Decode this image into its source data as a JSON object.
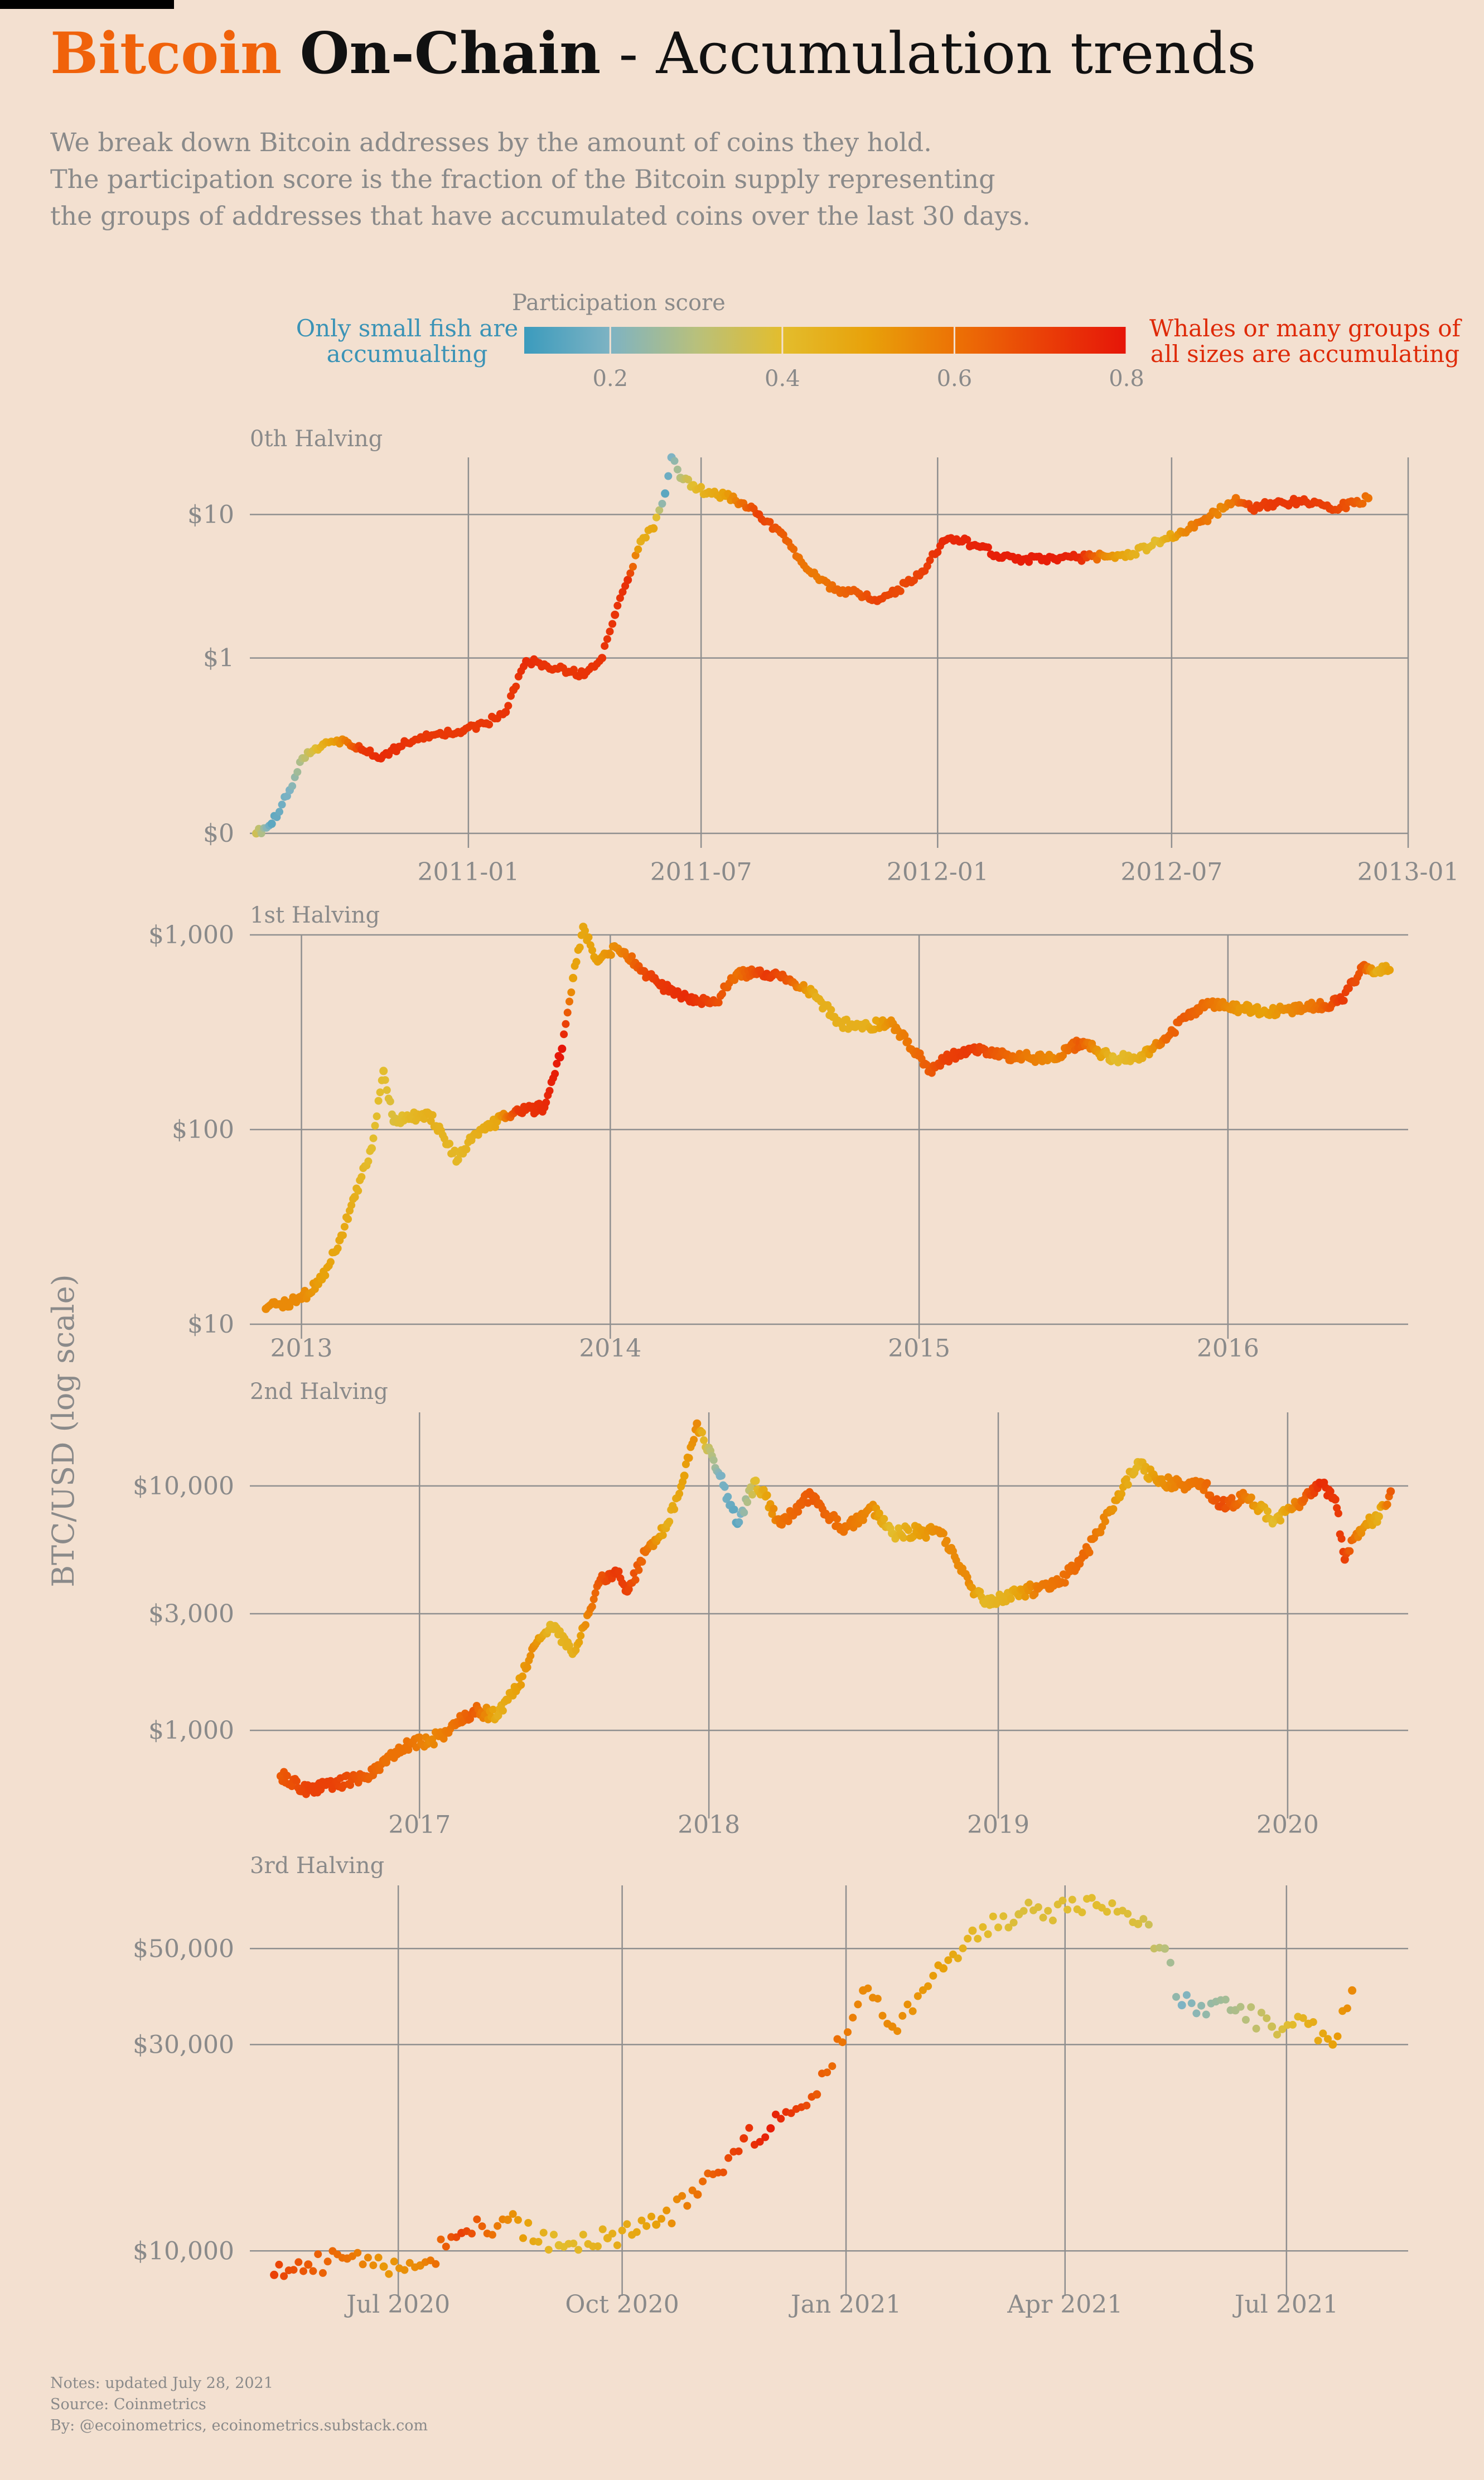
{
  "title": {
    "part1": "Bitcoin",
    "part2": "On-Chain",
    "part3": " - Accumulation trends"
  },
  "subtitle": [
    "We break down Bitcoin addresses by the amount of coins they hold.",
    "The participation score is the fraction of the Bitcoin supply representing",
    "the groups of addresses that have accumulated coins over the last 30 days."
  ],
  "legend": {
    "title": "Participation score",
    "left_label": "Only small fish are accumualting",
    "right_label": "Whales or many groups of all sizes are accumulating",
    "ticks": [
      "0.2",
      "0.4",
      "0.6",
      "0.8"
    ],
    "tick_values": [
      0.2,
      0.4,
      0.6,
      0.8
    ],
    "range": [
      0.1,
      0.8
    ],
    "colors": [
      "#3b9bbd",
      "#7eb3c3",
      "#b8c07c",
      "#e3bd2d",
      "#e8a10a",
      "#ec7205",
      "#ea4107",
      "#e61508"
    ],
    "left_color": "#3b93b6",
    "right_color": "#de2a08"
  },
  "ylabel": "BTC/USD (log scale)",
  "notes": [
    "Notes: updated July 28, 2021",
    "Source: Coinmetrics",
    "By: @ecoinometrics, ecoinometrics.substack.com"
  ],
  "chart_data": [
    {
      "type": "scatter",
      "title": "0th Halving",
      "yscale": "log",
      "xlim": [
        "2010-07-15",
        "2013-01-01"
      ],
      "ylim": [
        0.06,
        25
      ],
      "xticks": [
        {
          "date": "2011-01-01",
          "label": "2011-01"
        },
        {
          "date": "2011-07-01",
          "label": "2011-07"
        },
        {
          "date": "2012-01-01",
          "label": "2012-01"
        },
        {
          "date": "2012-07-01",
          "label": "2012-07"
        },
        {
          "date": "2013-01-01",
          "label": "2013-01"
        }
      ],
      "yticks": [
        {
          "value": 0.06,
          "label": "$0"
        },
        {
          "value": 1,
          "label": "$1"
        },
        {
          "value": 10,
          "label": "$10"
        }
      ],
      "points": [
        [
          "2010-07-20",
          0.06,
          0.35
        ],
        [
          "2010-08-01",
          0.07,
          0.15
        ],
        [
          "2010-08-15",
          0.12,
          0.2
        ],
        [
          "2010-08-25",
          0.2,
          0.3
        ],
        [
          "2010-09-10",
          0.25,
          0.45
        ],
        [
          "2010-09-25",
          0.27,
          0.55
        ],
        [
          "2010-10-10",
          0.23,
          0.72
        ],
        [
          "2010-10-25",
          0.2,
          0.75
        ],
        [
          "2010-11-08",
          0.24,
          0.74
        ],
        [
          "2010-11-25",
          0.28,
          0.72
        ],
        [
          "2010-12-10",
          0.3,
          0.72
        ],
        [
          "2010-12-28",
          0.31,
          0.72
        ],
        [
          "2011-01-15",
          0.35,
          0.72
        ],
        [
          "2011-01-30",
          0.42,
          0.73
        ],
        [
          "2011-02-05",
          0.6,
          0.72
        ],
        [
          "2011-02-15",
          0.95,
          0.75
        ],
        [
          "2011-03-01",
          0.9,
          0.73
        ],
        [
          "2011-03-20",
          0.8,
          0.72
        ],
        [
          "2011-04-01",
          0.76,
          0.73
        ],
        [
          "2011-04-15",
          1.0,
          0.73
        ],
        [
          "2011-04-25",
          2.0,
          0.73
        ],
        [
          "2011-05-05",
          3.5,
          0.74
        ],
        [
          "2011-05-15",
          6.5,
          0.45
        ],
        [
          "2011-05-25",
          8.0,
          0.48
        ],
        [
          "2011-06-03",
          14.0,
          0.15
        ],
        [
          "2011-06-08",
          25.0,
          0.2
        ],
        [
          "2011-06-15",
          18.0,
          0.3
        ],
        [
          "2011-06-25",
          16.0,
          0.4
        ],
        [
          "2011-07-05",
          14.0,
          0.45
        ],
        [
          "2011-07-20",
          13.5,
          0.5
        ],
        [
          "2011-08-01",
          12.0,
          0.6
        ],
        [
          "2011-08-15",
          10.0,
          0.7
        ],
        [
          "2011-09-01",
          7.5,
          0.65
        ],
        [
          "2011-09-15",
          5.0,
          0.6
        ],
        [
          "2011-10-01",
          3.5,
          0.58
        ],
        [
          "2011-10-15",
          3.0,
          0.62
        ],
        [
          "2011-11-01",
          2.8,
          0.65
        ],
        [
          "2011-11-15",
          2.5,
          0.7
        ],
        [
          "2011-12-01",
          3.0,
          0.68
        ],
        [
          "2011-12-20",
          4.0,
          0.7
        ],
        [
          "2012-01-05",
          6.5,
          0.75
        ],
        [
          "2012-01-20",
          6.5,
          0.76
        ],
        [
          "2012-02-05",
          6.0,
          0.77
        ],
        [
          "2012-02-20",
          5.0,
          0.78
        ],
        [
          "2012-03-10",
          4.9,
          0.78
        ],
        [
          "2012-04-01",
          4.9,
          0.78
        ],
        [
          "2012-04-20",
          5.0,
          0.76
        ],
        [
          "2012-05-10",
          5.1,
          0.55
        ],
        [
          "2012-06-01",
          5.3,
          0.45
        ],
        [
          "2012-06-20",
          6.5,
          0.4
        ],
        [
          "2012-07-10",
          7.5,
          0.55
        ],
        [
          "2012-07-25",
          9.0,
          0.6
        ],
        [
          "2012-08-10",
          11.0,
          0.55
        ],
        [
          "2012-08-20",
          13.0,
          0.6
        ],
        [
          "2012-09-01",
          11.0,
          0.7
        ],
        [
          "2012-09-20",
          12.0,
          0.72
        ],
        [
          "2012-10-10",
          12.3,
          0.72
        ],
        [
          "2012-11-01",
          11.0,
          0.7
        ],
        [
          "2012-11-20",
          12.0,
          0.65
        ],
        [
          "2012-12-01",
          13.0,
          0.6
        ]
      ]
    },
    {
      "type": "scatter",
      "title": "1st Halving",
      "yscale": "log",
      "xlim": [
        "2012-11-01",
        "2016-08-01"
      ],
      "ylim": [
        10,
        1000
      ],
      "xticks": [
        {
          "date": "2013-01-01",
          "label": "2013"
        },
        {
          "date": "2014-01-01",
          "label": "2014"
        },
        {
          "date": "2015-01-01",
          "label": "2015"
        },
        {
          "date": "2016-01-01",
          "label": "2016"
        }
      ],
      "yticks": [
        {
          "value": 10,
          "label": "$10"
        },
        {
          "value": 100,
          "label": "$100"
        },
        {
          "value": 1000,
          "label": "$1,000"
        }
      ],
      "points": [
        [
          "2012-11-20",
          12.0,
          0.55
        ],
        [
          "2013-01-01",
          13.5,
          0.55
        ],
        [
          "2013-01-25",
          17.0,
          0.5
        ],
        [
          "2013-02-15",
          27.0,
          0.48
        ],
        [
          "2013-03-05",
          45.0,
          0.45
        ],
        [
          "2013-03-25",
          80.0,
          0.4
        ],
        [
          "2013-04-08",
          200.0,
          0.4
        ],
        [
          "2013-04-20",
          110.0,
          0.38
        ],
        [
          "2013-05-10",
          115.0,
          0.42
        ],
        [
          "2013-06-01",
          120.0,
          0.45
        ],
        [
          "2013-07-05",
          70.0,
          0.42
        ],
        [
          "2013-07-25",
          95.0,
          0.45
        ],
        [
          "2013-08-20",
          110.0,
          0.48
        ],
        [
          "2013-09-15",
          125.0,
          0.72
        ],
        [
          "2013-10-15",
          130.0,
          0.75
        ],
        [
          "2013-11-05",
          260.0,
          0.8
        ],
        [
          "2013-11-18",
          600.0,
          0.5
        ],
        [
          "2013-11-30",
          1100.0,
          0.48
        ],
        [
          "2013-12-15",
          750.0,
          0.5
        ],
        [
          "2014-01-10",
          850.0,
          0.55
        ],
        [
          "2014-02-10",
          650.0,
          0.68
        ],
        [
          "2014-03-01",
          550.0,
          0.72
        ],
        [
          "2014-04-01",
          480.0,
          0.75
        ],
        [
          "2014-05-05",
          450.0,
          0.68
        ],
        [
          "2014-06-01",
          640.0,
          0.6
        ],
        [
          "2014-07-05",
          630.0,
          0.72
        ],
        [
          "2014-08-01",
          590.0,
          0.65
        ],
        [
          "2014-09-01",
          480.0,
          0.45
        ],
        [
          "2014-10-01",
          350.0,
          0.45
        ],
        [
          "2014-11-01",
          340.0,
          0.45
        ],
        [
          "2014-12-01",
          350.0,
          0.55
        ],
        [
          "2015-01-14",
          200.0,
          0.65
        ],
        [
          "2015-02-01",
          230.0,
          0.7
        ],
        [
          "2015-03-01",
          260.0,
          0.72
        ],
        [
          "2015-04-01",
          240.0,
          0.65
        ],
        [
          "2015-05-10",
          235.0,
          0.58
        ],
        [
          "2015-06-10",
          230.0,
          0.55
        ],
        [
          "2015-07-10",
          280.0,
          0.65
        ],
        [
          "2015-08-20",
          230.0,
          0.4
        ],
        [
          "2015-09-20",
          240.0,
          0.45
        ],
        [
          "2015-10-20",
          290.0,
          0.62
        ],
        [
          "2015-11-10",
          380.0,
          0.65
        ],
        [
          "2015-12-10",
          440.0,
          0.6
        ],
        [
          "2016-01-15",
          420.0,
          0.52
        ],
        [
          "2016-02-15",
          400.0,
          0.5
        ],
        [
          "2016-03-15",
          410.0,
          0.55
        ],
        [
          "2016-04-15",
          430.0,
          0.6
        ],
        [
          "2016-05-15",
          460.0,
          0.72
        ],
        [
          "2016-06-10",
          700.0,
          0.65
        ],
        [
          "2016-06-25",
          650.0,
          0.45
        ],
        [
          "2016-07-10",
          660.0,
          0.5
        ]
      ]
    },
    {
      "type": "scatter",
      "title": "2nd Halving",
      "yscale": "log",
      "xlim": [
        "2016-06-01",
        "2020-06-01"
      ],
      "ylim": [
        500,
        20000
      ],
      "xticks": [
        {
          "date": "2017-01-01",
          "label": "2017"
        },
        {
          "date": "2018-01-01",
          "label": "2018"
        },
        {
          "date": "2019-01-01",
          "label": "2019"
        },
        {
          "date": "2020-01-01",
          "label": "2020"
        }
      ],
      "yticks": [
        {
          "value": 1000,
          "label": "$1,000"
        },
        {
          "value": 3000,
          "label": "$3,000"
        },
        {
          "value": 10000,
          "label": "$10,000"
        }
      ],
      "points": [
        [
          "2016-07-10",
          650.0,
          0.65
        ],
        [
          "2016-08-15",
          570.0,
          0.7
        ],
        [
          "2016-09-15",
          600.0,
          0.7
        ],
        [
          "2016-10-20",
          640.0,
          0.65
        ],
        [
          "2016-11-20",
          740.0,
          0.6
        ],
        [
          "2016-12-20",
          880.0,
          0.6
        ],
        [
          "2017-01-15",
          900.0,
          0.55
        ],
        [
          "2017-02-15",
          1050.0,
          0.6
        ],
        [
          "2017-03-10",
          1200.0,
          0.65
        ],
        [
          "2017-04-10",
          1150.0,
          0.45
        ],
        [
          "2017-05-05",
          1500.0,
          0.5
        ],
        [
          "2017-05-25",
          2200.0,
          0.55
        ],
        [
          "2017-06-15",
          2700.0,
          0.42
        ],
        [
          "2017-07-15",
          2100.0,
          0.45
        ],
        [
          "2017-08-15",
          4000.0,
          0.65
        ],
        [
          "2017-09-05",
          4500.0,
          0.72
        ],
        [
          "2017-09-20",
          3700.0,
          0.7
        ],
        [
          "2017-10-15",
          5500.0,
          0.6
        ],
        [
          "2017-11-10",
          7000.0,
          0.45
        ],
        [
          "2017-12-01",
          11000.0,
          0.5
        ],
        [
          "2017-12-17",
          18000.0,
          0.55
        ],
        [
          "2017-12-30",
          14000.0,
          0.35
        ],
        [
          "2018-01-15",
          11000.0,
          0.2
        ],
        [
          "2018-02-06",
          7000.0,
          0.15
        ],
        [
          "2018-03-01",
          10500.0,
          0.4
        ],
        [
          "2018-04-01",
          7000.0,
          0.6
        ],
        [
          "2018-05-10",
          9200.0,
          0.65
        ],
        [
          "2018-06-20",
          6500.0,
          0.6
        ],
        [
          "2018-07-25",
          8200.0,
          0.55
        ],
        [
          "2018-08-20",
          6400.0,
          0.4
        ],
        [
          "2018-09-20",
          6500.0,
          0.5
        ],
        [
          "2018-10-20",
          6400.0,
          0.55
        ],
        [
          "2018-11-25",
          4000.0,
          0.55
        ],
        [
          "2018-12-15",
          3300.0,
          0.42
        ],
        [
          "2019-01-15",
          3600.0,
          0.45
        ],
        [
          "2019-02-20",
          3800.0,
          0.58
        ],
        [
          "2019-03-20",
          4000.0,
          0.6
        ],
        [
          "2019-04-20",
          5200.0,
          0.62
        ],
        [
          "2019-05-20",
          7800.0,
          0.55
        ],
        [
          "2019-06-26",
          12500.0,
          0.42
        ],
        [
          "2019-07-20",
          10500.0,
          0.52
        ],
        [
          "2019-08-20",
          10100.0,
          0.58
        ],
        [
          "2019-09-15",
          10300.0,
          0.6
        ],
        [
          "2019-10-10",
          8300.0,
          0.68
        ],
        [
          "2019-11-10",
          9000.0,
          0.58
        ],
        [
          "2019-12-15",
          7200.0,
          0.4
        ],
        [
          "2020-01-20",
          8600.0,
          0.62
        ],
        [
          "2020-02-12",
          10200.0,
          0.75
        ],
        [
          "2020-03-01",
          8800.0,
          0.72
        ],
        [
          "2020-03-13",
          5000.0,
          0.7
        ],
        [
          "2020-04-01",
          6600.0,
          0.55
        ],
        [
          "2020-04-25",
          7500.0,
          0.45
        ],
        [
          "2020-05-10",
          9500.0,
          0.65
        ]
      ]
    },
    {
      "type": "scatter",
      "title": "3rd Halving",
      "yscale": "log",
      "xlim": [
        "2020-05-01",
        "2021-08-20"
      ],
      "ylim": [
        8500,
        70000
      ],
      "xticks": [
        {
          "date": "2020-07-01",
          "label": "Jul 2020"
        },
        {
          "date": "2020-10-01",
          "label": "Oct 2020"
        },
        {
          "date": "2021-01-01",
          "label": "Jan 2021"
        },
        {
          "date": "2021-04-01",
          "label": "Apr 2021"
        },
        {
          "date": "2021-07-01",
          "label": "Jul 2021"
        }
      ],
      "yticks": [
        {
          "value": 10000,
          "label": "$10,000"
        },
        {
          "value": 30000,
          "label": "$30,000"
        },
        {
          "value": 50000,
          "label": "$50,000"
        }
      ],
      "points": [
        [
          "2020-05-11",
          8800.0,
          0.7
        ],
        [
          "2020-05-25",
          9300.0,
          0.65
        ],
        [
          "2020-06-10",
          9600.0,
          0.6
        ],
        [
          "2020-06-25",
          9200.0,
          0.52
        ],
        [
          "2020-07-10",
          9250.0,
          0.55
        ],
        [
          "2020-07-27",
          11000.0,
          0.7
        ],
        [
          "2020-08-15",
          11800.0,
          0.55
        ],
        [
          "2020-09-05",
          10300.0,
          0.4
        ],
        [
          "2020-09-25",
          10700.0,
          0.45
        ],
        [
          "2020-10-15",
          11500.0,
          0.5
        ],
        [
          "2020-11-01",
          13500.0,
          0.6
        ],
        [
          "2020-11-20",
          18200.0,
          0.72
        ],
        [
          "2020-12-01",
          19200.0,
          0.78
        ],
        [
          "2020-12-20",
          23000.0,
          0.65
        ],
        [
          "2021-01-08",
          40000.0,
          0.55
        ],
        [
          "2021-01-20",
          33000.0,
          0.55
        ],
        [
          "2021-02-10",
          45000.0,
          0.5
        ],
        [
          "2021-02-22",
          55000.0,
          0.42
        ],
        [
          "2021-03-13",
          60000.0,
          0.38
        ],
        [
          "2021-04-14",
          63000.0,
          0.4
        ],
        [
          "2021-05-01",
          57000.0,
          0.38
        ],
        [
          "2021-05-12",
          50000.0,
          0.3
        ],
        [
          "2021-05-19",
          37000.0,
          0.2
        ],
        [
          "2021-06-10",
          36000.0,
          0.28
        ],
        [
          "2021-06-25",
          33000.0,
          0.35
        ],
        [
          "2021-07-10",
          33500.0,
          0.45
        ],
        [
          "2021-07-20",
          30000.0,
          0.5
        ],
        [
          "2021-07-28",
          40000.0,
          0.55
        ]
      ]
    }
  ]
}
